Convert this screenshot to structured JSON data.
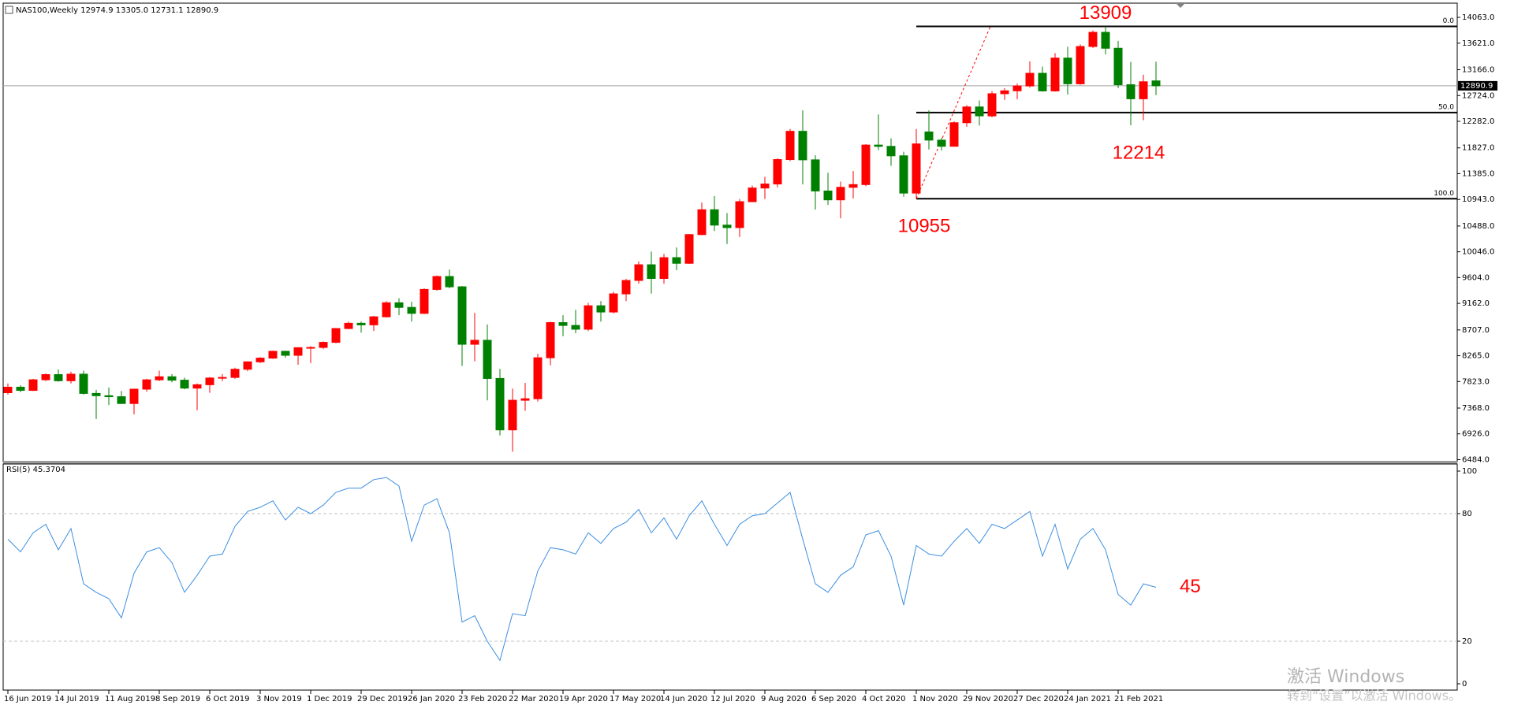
{
  "chart_data": [
    {
      "type": "candlestick",
      "title": "NAS100,Weekly  12974.9 13305.0 12731.1 12890.9",
      "categories": [
        "16 Jun 2019",
        null,
        null,
        null,
        "14 Jul 2019",
        null,
        null,
        null,
        "11 Aug 2019",
        null,
        null,
        null,
        "8 Sep 2019",
        null,
        null,
        null,
        "6 Oct 2019",
        null,
        null,
        null,
        "3 Nov 2019",
        null,
        null,
        null,
        "1 Dec 2019",
        null,
        null,
        null,
        "29 Dec 2019",
        null,
        null,
        null,
        "26 Jan 2020",
        null,
        null,
        null,
        "23 Feb 2020",
        null,
        null,
        null,
        "22 Mar 2020",
        null,
        null,
        null,
        "19 Apr 2020",
        null,
        null,
        null,
        "17 May 2020",
        null,
        null,
        null,
        "14 Jun 2020",
        null,
        null,
        null,
        "12 Jul 2020",
        null,
        null,
        null,
        "9 Aug 2020",
        null,
        null,
        null,
        "6 Sep 2020",
        null,
        null,
        null,
        "4 Oct 2020",
        null,
        null,
        null,
        "1 Nov 2020",
        null,
        null,
        null,
        "29 Nov 2020",
        null,
        null,
        null,
        "27 Dec 2020",
        null,
        null,
        null,
        "24 Jan 2021",
        null,
        null,
        null,
        "21 Feb 2021",
        null,
        null,
        null
      ],
      "open": [
        7631,
        7726,
        7671,
        7853,
        7942,
        7836,
        7949,
        7619,
        7580,
        7563,
        7446,
        7692,
        7852,
        7905,
        7846,
        7710,
        7768,
        7883,
        7893,
        8033,
        8160,
        8224,
        8341,
        8272,
        8403,
        8407,
        8494,
        8731,
        8821,
        8794,
        8932,
        9173,
        9093,
        8991,
        9401,
        9623,
        9446,
        8461,
        8530,
        7875,
        6994,
        7502,
        7528,
        8230,
        8833,
        8784,
        8719,
        9121,
        9014,
        9325,
        9555,
        9824,
        9589,
        9946,
        9849,
        10341,
        10767,
        10503,
        10461,
        10905,
        11139,
        11208,
        11627,
        12111,
        11622,
        11088,
        10936,
        11151,
        11198,
        11875,
        11853,
        11691,
        11052,
        12100,
        11960,
        11854,
        12258,
        12528,
        12375,
        12755,
        12805,
        12888,
        13105,
        12803,
        13366,
        12925,
        13564,
        13807,
        13534,
        12909,
        12668,
        12974.9
      ],
      "high": [
        7790,
        7760,
        7870,
        7960,
        8030,
        7990,
        8010,
        7680,
        7720,
        7660,
        7700,
        7870,
        8010,
        7950,
        7890,
        7790,
        7900,
        7950,
        8060,
        8170,
        8240,
        8350,
        8350,
        8410,
        8430,
        8510,
        8740,
        8850,
        8850,
        8950,
        9200,
        9250,
        9190,
        9420,
        9640,
        9740,
        9460,
        9000,
        8800,
        8040,
        7700,
        7800,
        8300,
        8850,
        8960,
        9050,
        9170,
        9200,
        9360,
        9580,
        9880,
        10050,
        10010,
        10120,
        10350,
        10890,
        11000,
        10710,
        10950,
        11180,
        11330,
        11650,
        12150,
        12470,
        11700,
        11400,
        11250,
        11430,
        11890,
        12400,
        11990,
        11760,
        12150,
        12470,
        12000,
        12280,
        12560,
        12640,
        12800,
        12850,
        12930,
        13310,
        13220,
        13450,
        13560,
        13600,
        13840,
        13909,
        13660,
        13300,
        13080,
        13305.0
      ],
      "low": [
        7600,
        7640,
        7660,
        7830,
        7820,
        7790,
        7600,
        7180,
        7420,
        7440,
        7260,
        7650,
        7830,
        7810,
        7690,
        7330,
        7630,
        7830,
        7870,
        8000,
        8140,
        8210,
        8230,
        8110,
        8140,
        8380,
        8480,
        8720,
        8660,
        8690,
        8920,
        8960,
        8850,
        8980,
        9380,
        9420,
        8090,
        8170,
        7500,
        6900,
        6620,
        7320,
        7480,
        8100,
        8600,
        8650,
        8690,
        8850,
        8990,
        9200,
        9500,
        9330,
        9500,
        9730,
        9840,
        10330,
        10400,
        10180,
        10300,
        10900,
        10950,
        11150,
        11600,
        11200,
        10770,
        10850,
        10620,
        10960,
        11170,
        11790,
        11520,
        10990,
        10955,
        11800,
        11780,
        11850,
        12190,
        12210,
        12350,
        12650,
        12660,
        12860,
        12790,
        12790,
        12740,
        12910,
        13540,
        13430,
        12850,
        12214,
        12300,
        12731.1
      ],
      "close": [
        7726,
        7671,
        7853,
        7942,
        7836,
        7949,
        7619,
        7580,
        7563,
        7446,
        7692,
        7852,
        7905,
        7846,
        7710,
        7768,
        7883,
        7893,
        8033,
        8160,
        8224,
        8341,
        8272,
        8403,
        8407,
        8494,
        8731,
        8821,
        8794,
        8932,
        9173,
        9093,
        8991,
        9401,
        9623,
        9446,
        8461,
        8530,
        7875,
        6994,
        7502,
        7528,
        8230,
        8833,
        8784,
        8719,
        9121,
        9014,
        9325,
        9555,
        9824,
        9589,
        9946,
        9849,
        10341,
        10767,
        10503,
        10461,
        10905,
        11139,
        11208,
        11627,
        12111,
        11622,
        11088,
        10936,
        11151,
        11198,
        11875,
        11853,
        11691,
        11052,
        11895,
        11960,
        11854,
        12258,
        12528,
        12375,
        12755,
        12805,
        12888,
        13105,
        12803,
        13366,
        12925,
        13564,
        13807,
        13534,
        12909,
        12668,
        12960,
        12890.9
      ],
      "up_color": "#ff0000",
      "down_color": "#008000",
      "ylim": [
        6450,
        14280
      ],
      "yticks": [
        {
          "value": 14063,
          "label": "14063.0"
        },
        {
          "value": 13621,
          "label": "13621.0"
        },
        {
          "value": 13166,
          "label": "13166.0"
        },
        {
          "value": 12724,
          "label": "12724.0"
        },
        {
          "value": 12282,
          "label": "12282.0"
        },
        {
          "value": 11827,
          "label": "11827.0"
        },
        {
          "value": 11385,
          "label": "11385.0"
        },
        {
          "value": 10943,
          "label": "10943.0"
        },
        {
          "value": 10488,
          "label": "10488.0"
        },
        {
          "value": 10046,
          "label": "10046.0"
        },
        {
          "value": 9604,
          "label": "9604.0"
        },
        {
          "value": 9162,
          "label": "9162.0"
        },
        {
          "value": 8707,
          "label": "8707.0"
        },
        {
          "value": 8265,
          "label": "8265.0"
        },
        {
          "value": 7823,
          "label": "7823.0"
        },
        {
          "value": 7368,
          "label": "7368.0"
        },
        {
          "value": 6926,
          "label": "6926.0"
        },
        {
          "value": 6484,
          "label": "6484.0"
        }
      ],
      "current_price": 12890.9,
      "fibo": {
        "high": 13909,
        "low": 10955,
        "levels": [
          {
            "value": 0,
            "label": "0.0"
          },
          {
            "value": 50,
            "label": "50.0"
          },
          {
            "value": 100,
            "label": "100.0"
          }
        ]
      },
      "annotations": [
        13909,
        12214,
        10955
      ],
      "annotation_color": "#ff0000"
    },
    {
      "type": "line",
      "title": "RSI(5) 45.3704",
      "color": "#3c8ee0",
      "values": [
        68,
        62,
        71,
        75,
        63,
        73,
        47,
        43,
        40,
        31,
        52,
        62,
        64,
        57,
        43,
        51,
        60,
        61,
        74,
        81,
        83,
        86,
        77,
        83,
        80,
        84,
        90,
        92,
        92,
        96,
        97,
        93,
        67,
        84,
        87,
        71,
        29,
        32,
        20,
        11,
        33,
        32,
        53,
        64,
        63,
        61,
        71,
        66,
        73,
        76,
        82,
        71,
        78,
        68,
        79,
        86,
        75,
        65,
        75,
        79,
        80,
        85,
        90,
        68,
        47,
        43,
        51,
        55,
        70,
        72,
        60,
        37,
        65,
        61,
        60,
        67,
        73,
        66,
        75,
        73,
        77,
        81,
        60,
        75,
        54,
        68,
        73,
        63,
        42,
        37,
        47,
        45.3704
      ],
      "value_labels": [
        null,
        null,
        null,
        null,
        null,
        null,
        null,
        null,
        null,
        null,
        null,
        null,
        null,
        null,
        null,
        null,
        null,
        null,
        null,
        null,
        null,
        null,
        null,
        null,
        null,
        null,
        null,
        null,
        null,
        null,
        null,
        null,
        null,
        null,
        null,
        null,
        null,
        null,
        null,
        null,
        null,
        null,
        null,
        null,
        null,
        null,
        null,
        null,
        null,
        null,
        null,
        null,
        null,
        null,
        null,
        null,
        null,
        null,
        null,
        null,
        null,
        null,
        null,
        null,
        null,
        null,
        null,
        null,
        null,
        null,
        null,
        null,
        null,
        null,
        null,
        null,
        null,
        null,
        null,
        null,
        null,
        null,
        null,
        null,
        null,
        null,
        null,
        null,
        null,
        null,
        null,
        "45"
      ],
      "ylim": [
        0,
        100
      ],
      "yticks": [
        100,
        80,
        20,
        0
      ],
      "levels": [
        80,
        20
      ]
    }
  ],
  "watermark": {
    "line1": "激活 Windows",
    "line2": "转到“设置”以激活 Windows。"
  }
}
